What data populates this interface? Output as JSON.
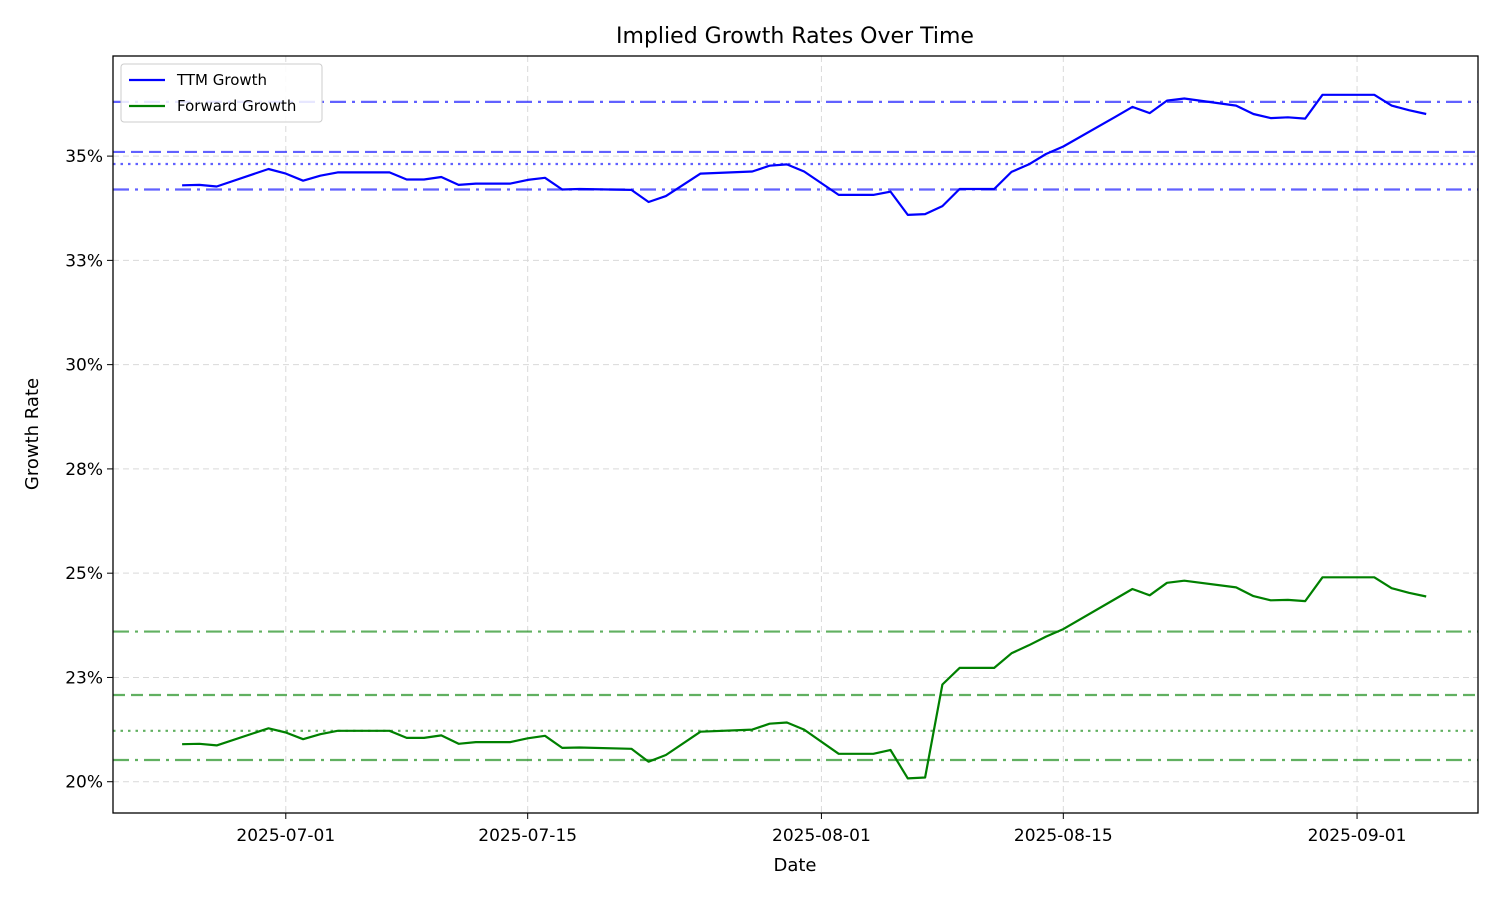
{
  "chart_data": {
    "type": "line",
    "title": "Implied Growth Rates Over Time",
    "xlabel": "Date",
    "ylabel": "Growth Rate",
    "x_ticks": [
      "2025-07-01",
      "2025-07-15",
      "2025-08-01",
      "2025-08-15",
      "2025-09-01"
    ],
    "y_ticks": [
      20,
      22.5,
      25,
      27.5,
      30,
      32.5,
      35
    ],
    "y_tick_labels": [
      "20%",
      "23%",
      "25%",
      "28%",
      "30%",
      "33%",
      "35%"
    ],
    "xlim": [
      "2025-06-21",
      "2025-09-08"
    ],
    "ylim": [
      19.25,
      37.4
    ],
    "grid": true,
    "legend": "top-left",
    "series": [
      {
        "name": "TTM Growth",
        "color": "#0000ff",
        "points": [
          [
            "2025-06-25",
            34.3
          ],
          [
            "2025-06-26",
            34.31
          ],
          [
            "2025-06-27",
            34.27
          ],
          [
            "2025-06-30",
            34.69
          ],
          [
            "2025-07-01",
            34.58
          ],
          [
            "2025-07-02",
            34.41
          ],
          [
            "2025-07-03",
            34.53
          ],
          [
            "2025-07-04",
            34.61
          ],
          [
            "2025-07-07",
            34.61
          ],
          [
            "2025-07-08",
            34.44
          ],
          [
            "2025-07-09",
            34.44
          ],
          [
            "2025-07-10",
            34.5
          ],
          [
            "2025-07-11",
            34.31
          ],
          [
            "2025-07-12",
            34.34
          ],
          [
            "2025-07-14",
            34.34
          ],
          [
            "2025-07-15",
            34.43
          ],
          [
            "2025-07-16",
            34.48
          ],
          [
            "2025-07-17",
            34.2
          ],
          [
            "2025-07-18",
            34.21
          ],
          [
            "2025-07-21",
            34.19
          ],
          [
            "2025-07-22",
            33.9
          ],
          [
            "2025-07-23",
            34.04
          ],
          [
            "2025-07-25",
            34.58
          ],
          [
            "2025-07-28",
            34.63
          ],
          [
            "2025-07-29",
            34.77
          ],
          [
            "2025-07-30",
            34.8
          ],
          [
            "2025-07-31",
            34.63
          ],
          [
            "2025-08-02",
            34.07
          ],
          [
            "2025-08-04",
            34.07
          ],
          [
            "2025-08-05",
            34.15
          ],
          [
            "2025-08-06",
            33.59
          ],
          [
            "2025-08-07",
            33.61
          ],
          [
            "2025-08-08",
            33.8
          ],
          [
            "2025-08-09",
            34.21
          ],
          [
            "2025-08-11",
            34.21
          ],
          [
            "2025-08-12",
            34.62
          ],
          [
            "2025-08-13",
            34.8
          ],
          [
            "2025-08-14",
            35.05
          ],
          [
            "2025-08-15",
            35.23
          ],
          [
            "2025-08-18",
            35.94
          ],
          [
            "2025-08-19",
            36.18
          ],
          [
            "2025-08-20",
            36.03
          ],
          [
            "2025-08-21",
            36.33
          ],
          [
            "2025-08-22",
            36.38
          ],
          [
            "2025-08-25",
            36.21
          ],
          [
            "2025-08-26",
            36.01
          ],
          [
            "2025-08-27",
            35.91
          ],
          [
            "2025-08-28",
            35.93
          ],
          [
            "2025-08-29",
            35.9
          ],
          [
            "2025-08-30",
            36.47
          ],
          [
            "2025-09-02",
            36.47
          ],
          [
            "2025-09-03",
            36.21
          ],
          [
            "2025-09-04",
            36.1
          ],
          [
            "2025-09-05",
            36.01
          ]
        ]
      },
      {
        "name": "Forward Growth",
        "color": "#008000",
        "points": [
          [
            "2025-06-25",
            20.9
          ],
          [
            "2025-06-26",
            20.91
          ],
          [
            "2025-06-27",
            20.87
          ],
          [
            "2025-06-30",
            21.28
          ],
          [
            "2025-07-01",
            21.18
          ],
          [
            "2025-07-02",
            21.02
          ],
          [
            "2025-07-03",
            21.14
          ],
          [
            "2025-07-04",
            21.22
          ],
          [
            "2025-07-07",
            21.22
          ],
          [
            "2025-07-08",
            21.05
          ],
          [
            "2025-07-09",
            21.05
          ],
          [
            "2025-07-10",
            21.11
          ],
          [
            "2025-07-11",
            20.91
          ],
          [
            "2025-07-12",
            20.95
          ],
          [
            "2025-07-14",
            20.95
          ],
          [
            "2025-07-15",
            21.04
          ],
          [
            "2025-07-16",
            21.1
          ],
          [
            "2025-07-17",
            20.81
          ],
          [
            "2025-07-18",
            20.82
          ],
          [
            "2025-07-21",
            20.79
          ],
          [
            "2025-07-22",
            20.48
          ],
          [
            "2025-07-23",
            20.64
          ],
          [
            "2025-07-25",
            21.2
          ],
          [
            "2025-07-28",
            21.25
          ],
          [
            "2025-07-29",
            21.39
          ],
          [
            "2025-07-30",
            21.42
          ],
          [
            "2025-07-31",
            21.25
          ],
          [
            "2025-08-02",
            20.67
          ],
          [
            "2025-08-04",
            20.67
          ],
          [
            "2025-08-05",
            20.76
          ],
          [
            "2025-08-06",
            20.08
          ],
          [
            "2025-08-07",
            20.1
          ],
          [
            "2025-08-08",
            22.33
          ],
          [
            "2025-08-09",
            22.73
          ],
          [
            "2025-08-11",
            22.73
          ],
          [
            "2025-08-12",
            23.08
          ],
          [
            "2025-08-13",
            23.27
          ],
          [
            "2025-08-14",
            23.48
          ],
          [
            "2025-08-15",
            23.66
          ],
          [
            "2025-08-18",
            24.38
          ],
          [
            "2025-08-19",
            24.62
          ],
          [
            "2025-08-20",
            24.47
          ],
          [
            "2025-08-21",
            24.77
          ],
          [
            "2025-08-22",
            24.82
          ],
          [
            "2025-08-25",
            24.66
          ],
          [
            "2025-08-26",
            24.45
          ],
          [
            "2025-08-27",
            24.35
          ],
          [
            "2025-08-28",
            24.36
          ],
          [
            "2025-08-29",
            24.33
          ],
          [
            "2025-08-30",
            24.9
          ],
          [
            "2025-09-02",
            24.9
          ],
          [
            "2025-09-03",
            24.64
          ],
          [
            "2025-09-04",
            24.53
          ],
          [
            "2025-09-05",
            24.44
          ]
        ]
      }
    ],
    "reference_lines": [
      {
        "y": 36.3,
        "color": "#0000ff",
        "style": "dashdot"
      },
      {
        "y": 35.1,
        "color": "#0000ff",
        "style": "dashed"
      },
      {
        "y": 34.81,
        "color": "#0000ff",
        "style": "dotted"
      },
      {
        "y": 34.2,
        "color": "#0000ff",
        "style": "dashdot"
      },
      {
        "y": 23.6,
        "color": "#008000",
        "style": "dashdot"
      },
      {
        "y": 22.08,
        "color": "#008000",
        "style": "dashed"
      },
      {
        "y": 21.22,
        "color": "#008000",
        "style": "dotted"
      },
      {
        "y": 20.52,
        "color": "#008000",
        "style": "dashdot"
      }
    ]
  }
}
